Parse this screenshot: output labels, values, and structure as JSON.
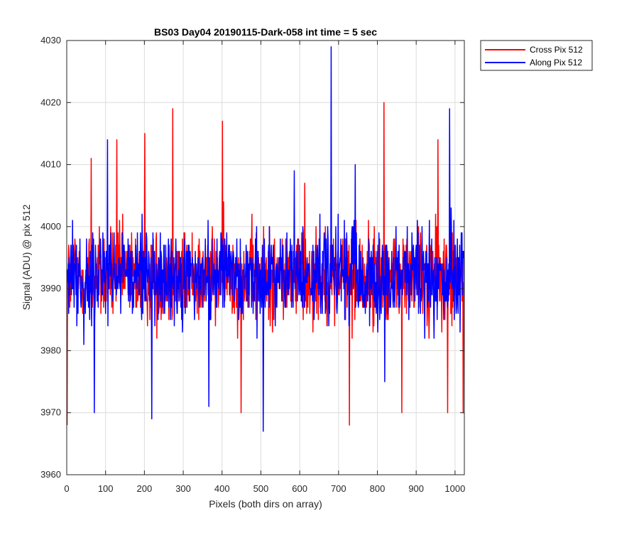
{
  "chart_data": {
    "type": "line",
    "title": "BS03 Day04 20190115-Dark-058 int time = 5 sec",
    "xlabel": "Pixels (both dirs on array)",
    "ylabel": "Signal (ADU) @ pix 512",
    "xlim": [
      0,
      1024
    ],
    "ylim": [
      3960,
      4030
    ],
    "xticks": [
      0,
      100,
      200,
      300,
      400,
      500,
      600,
      700,
      800,
      900,
      1000
    ],
    "yticks": [
      3960,
      3970,
      3980,
      3990,
      4000,
      4010,
      4020,
      4030
    ],
    "grid": true,
    "legend_position": "outside-top-right",
    "noise_model": {
      "n_points": 1024,
      "mean": 3992,
      "spread": 13
    },
    "series": [
      {
        "name": "Cross Pix 512",
        "color": "#ff0000",
        "seed": 12345,
        "peaks": [
          [
            0,
            3968
          ],
          [
            62,
            4011
          ],
          [
            128,
            4014
          ],
          [
            200,
            4015
          ],
          [
            272,
            4019
          ],
          [
            400,
            4017
          ],
          [
            448,
            3970
          ],
          [
            612,
            4007
          ],
          [
            727,
            3968
          ],
          [
            816,
            4020
          ],
          [
            862,
            3970
          ],
          [
            955,
            4014
          ],
          [
            980,
            3970
          ],
          [
            1020,
            3970
          ]
        ]
      },
      {
        "name": "Along Pix 512",
        "color": "#0000ff",
        "seed": 67890,
        "peaks": [
          [
            70,
            3970
          ],
          [
            104,
            4014
          ],
          [
            218,
            3969
          ],
          [
            365,
            3971
          ],
          [
            505,
            3967
          ],
          [
            585,
            4009
          ],
          [
            680,
            4029
          ],
          [
            742,
            4010
          ],
          [
            818,
            3975
          ],
          [
            985,
            4019
          ]
        ]
      }
    ]
  }
}
